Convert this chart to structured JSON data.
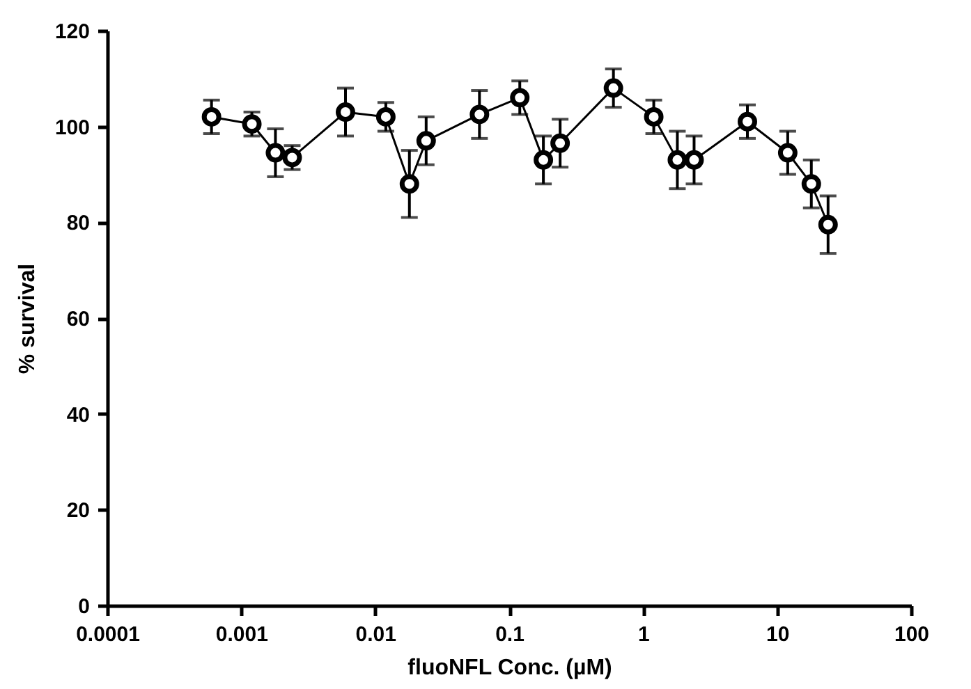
{
  "chart_data": {
    "type": "line",
    "xlabel": "fluoNFL Conc. (µM)",
    "ylabel": "% survival",
    "x": [
      0.0006,
      0.0012,
      0.0018,
      0.0024,
      0.006,
      0.012,
      0.018,
      0.024,
      0.06,
      0.12,
      0.18,
      0.24,
      0.6,
      1.2,
      1.8,
      2.4,
      6,
      12,
      18,
      24
    ],
    "series": [
      {
        "color": "#000000",
        "values": [
          102,
          100.5,
          94.5,
          93.5,
          103,
          102,
          88,
          97,
          102.5,
          106,
          93,
          96.5,
          108,
          102,
          93,
          93,
          101,
          94.5,
          88,
          79.5
        ],
        "errors": [
          3.5,
          2.5,
          5,
          2.5,
          5,
          3,
          7,
          5,
          5,
          3.5,
          5,
          5,
          4,
          3.5,
          6,
          5,
          3.5,
          4.5,
          5,
          6
        ]
      }
    ],
    "log": "x",
    "xlim": [
      0.0001,
      100
    ],
    "xticks": [
      0.0001,
      0.001,
      0.01,
      0.1,
      1,
      10,
      100
    ],
    "ylim": [
      0,
      120
    ],
    "yticks": [
      0,
      20,
      40,
      60,
      80,
      100,
      120
    ],
    "grid": false,
    "marker": "circle",
    "line_style": "solid"
  }
}
